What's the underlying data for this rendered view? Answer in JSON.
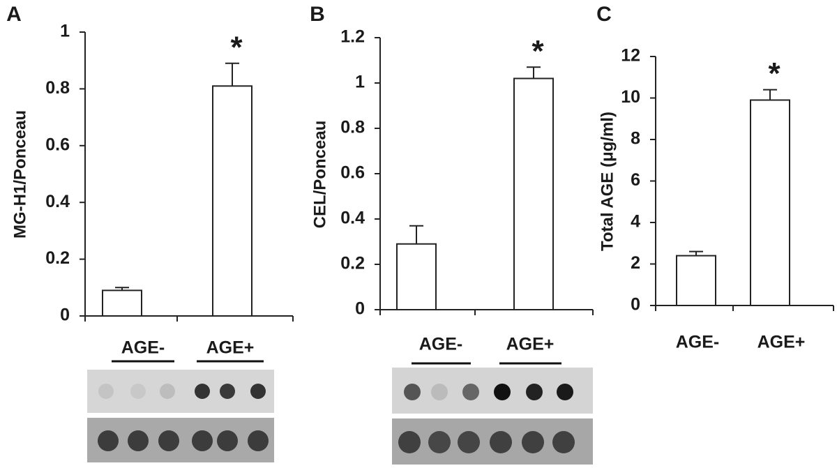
{
  "chart_data": [
    {
      "type": "bar",
      "panel_label": "A",
      "ylabel": "MG-H1/Ponceau",
      "categories": [
        "AGE-",
        "AGE+"
      ],
      "values": [
        0.09,
        0.81
      ],
      "errors": [
        0.01,
        0.08
      ],
      "color": "#ffffff",
      "ylim": [
        0,
        1
      ],
      "yticks": [
        0,
        0.2,
        0.4,
        0.6,
        0.8,
        1
      ],
      "annotation": "*"
    },
    {
      "type": "bar",
      "panel_label": "B",
      "ylabel": "CEL/Ponceau",
      "categories": [
        "AGE-",
        "AGE+"
      ],
      "values": [
        0.29,
        1.02
      ],
      "errors": [
        0.08,
        0.05
      ],
      "color": "#ffffff",
      "ylim": [
        0,
        1.2
      ],
      "yticks": [
        0,
        0.2,
        0.4,
        0.6,
        0.8,
        1,
        1.2
      ],
      "annotation": "*"
    },
    {
      "type": "bar",
      "panel_label": "C",
      "ylabel": "Total AGE (μg/ml)",
      "categories": [
        "AGE-",
        "AGE+"
      ],
      "values": [
        2.4,
        9.9
      ],
      "errors": [
        0.2,
        0.5
      ],
      "color": "#ffffff",
      "ylim": [
        0,
        12
      ],
      "yticks": [
        0,
        2,
        4,
        6,
        8,
        10,
        12
      ],
      "annotation": "*"
    }
  ]
}
